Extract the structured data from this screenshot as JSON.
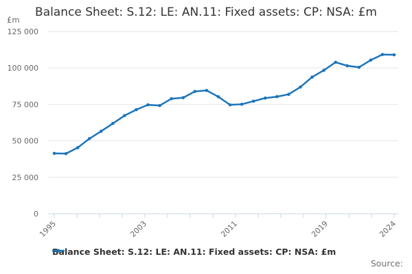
{
  "title": "Balance Sheet: S.12: LE: AN.11: Fixed assets: CP: NSA: £m",
  "y_axis": {
    "unit_label": "£m",
    "tick_values": [
      0,
      25000,
      50000,
      75000,
      100000,
      125000
    ],
    "tick_labels": [
      "0",
      "25 000",
      "50 000",
      "75 000",
      "100 000",
      "125 000"
    ]
  },
  "x_axis": {
    "tick_count": 16,
    "labeled_ticks": [
      {
        "tick_index": 0,
        "label": "1995"
      },
      {
        "tick_index": 4,
        "label": "2003"
      },
      {
        "tick_index": 8,
        "label": "2011"
      },
      {
        "tick_index": 12,
        "label": "2019"
      },
      {
        "tick_index": 15,
        "label": "2024"
      }
    ]
  },
  "legend": {
    "label": "Balance Sheet: S.12: LE: AN.11: Fixed assets: CP: NSA: £m"
  },
  "footer": {
    "source_label": "Source:"
  },
  "colors": {
    "series": "#1b75bb",
    "axis_line": "#ccd6eb",
    "gridline": "#e6e6e6",
    "tick_text": "#666666",
    "title_text": "#333333"
  },
  "chart_data": {
    "type": "line",
    "title": "Balance Sheet: S.12: LE: AN.11: Fixed assets: CP: NSA: £m",
    "ylabel": "£m",
    "ylim": [
      0,
      125000
    ],
    "grid": true,
    "legend_position": "bottom",
    "x": [
      1995,
      1996,
      1997,
      1998,
      1999,
      2000,
      2001,
      2002,
      2003,
      2004,
      2005,
      2006,
      2007,
      2008,
      2009,
      2010,
      2011,
      2012,
      2013,
      2014,
      2015,
      2016,
      2017,
      2018,
      2019,
      2020,
      2021,
      2022,
      2023,
      2024
    ],
    "series": [
      {
        "name": "Balance Sheet: S.12: LE: AN.11: Fixed assets: CP: NSA: £m",
        "values": [
          41400,
          41200,
          45300,
          51500,
          56600,
          61900,
          67300,
          71400,
          74700,
          74200,
          78900,
          79600,
          83900,
          84600,
          80200,
          74700,
          75100,
          77200,
          79300,
          80300,
          81900,
          86900,
          93700,
          98400,
          103900,
          101500,
          100400,
          105400,
          109200,
          109000
        ]
      }
    ]
  }
}
